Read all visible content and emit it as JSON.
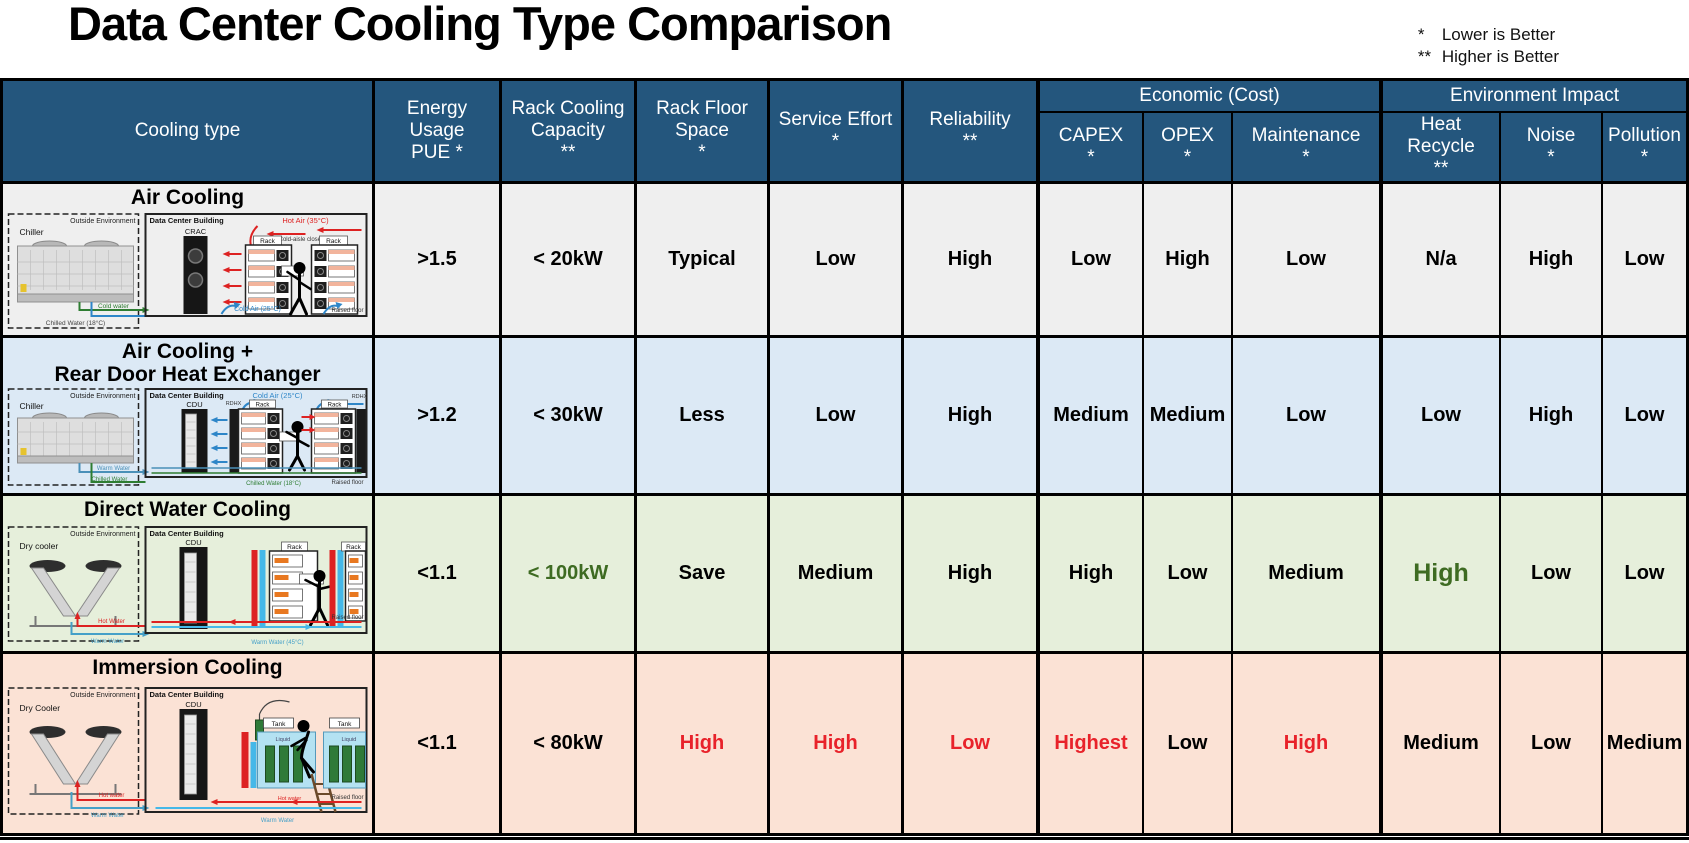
{
  "title": "Data Center Cooling Type Comparison",
  "legend": {
    "items": [
      {
        "marker": "*",
        "text": "Lower is Better"
      },
      {
        "marker": "**",
        "text": "Higher is Better"
      }
    ]
  },
  "colors": {
    "header_bg": "#24567d",
    "header_text": "#ffffff",
    "border": "#000000",
    "row_air_bg": "#efefef",
    "row_rdhx_bg": "#dce9f5",
    "row_dwc_bg": "#e6efdb",
    "row_immersion_bg": "#fbe2d5",
    "good_green": "#3e6b22",
    "bad_red": "#e8222a"
  },
  "table": {
    "groups": [
      {
        "label": "Economic (Cost)"
      },
      {
        "label": "Environment Impact"
      }
    ],
    "columns": [
      {
        "lines": [
          "Cooling type"
        ]
      },
      {
        "lines": [
          "Energy",
          "Usage",
          "PUE *"
        ]
      },
      {
        "lines": [
          "Rack Cooling",
          "Capacity",
          "**"
        ]
      },
      {
        "lines": [
          "Rack Floor",
          "Space",
          "*"
        ]
      },
      {
        "lines": [
          "Service Effort",
          "*"
        ]
      },
      {
        "lines": [
          "Reliability",
          "**"
        ]
      },
      {
        "lines": [
          "CAPEX",
          "*"
        ]
      },
      {
        "lines": [
          "OPEX",
          "*"
        ]
      },
      {
        "lines": [
          "Maintenance",
          "*"
        ]
      },
      {
        "lines": [
          "Heat",
          "Recycle",
          "**"
        ]
      },
      {
        "lines": [
          "Noise",
          "*"
        ]
      },
      {
        "lines": [
          "Pollution",
          "*"
        ]
      }
    ],
    "rows": [
      {
        "name": "Air Cooling",
        "name2": "",
        "bg": "#efefef",
        "values": [
          {
            "t": ">1.5"
          },
          {
            "t": "< 20kW"
          },
          {
            "t": "Typical"
          },
          {
            "t": "Low"
          },
          {
            "t": "High"
          },
          {
            "t": "Low"
          },
          {
            "t": "High"
          },
          {
            "t": "Low"
          },
          {
            "t": "N/a"
          },
          {
            "t": "High"
          },
          {
            "t": "Low"
          }
        ],
        "diagram": {
          "outside": "Outside Environment",
          "building": "Data Center Building",
          "unit": "Chiller",
          "tower": "CRAC",
          "rack1": "Rack",
          "rack2": "Rack",
          "aisle": "Cold-aisle closed",
          "hot_air": "Hot Air (35°C)",
          "cold_air": "Cold Air (25°C)",
          "pipe1": "Cold water",
          "pipe2": "Chilled Water (18°C)",
          "floor": "Raised floor"
        }
      },
      {
        "name": "Air Cooling +",
        "name2": "Rear Door Heat Exchanger",
        "bg": "#dce9f5",
        "values": [
          {
            "t": ">1.2"
          },
          {
            "t": "< 30kW"
          },
          {
            "t": "Less"
          },
          {
            "t": "Low"
          },
          {
            "t": "High"
          },
          {
            "t": "Medium"
          },
          {
            "t": "Medium"
          },
          {
            "t": "Low"
          },
          {
            "t": "Low"
          },
          {
            "t": "High"
          },
          {
            "t": "Low"
          }
        ],
        "diagram": {
          "outside": "Outside Environment",
          "building": "Data Center Building",
          "unit": "Chiller",
          "tower": "CDU",
          "rdhx1": "RDHX",
          "rdhx2": "RDHX",
          "rack1": "Rack",
          "rack2": "Rack",
          "cold_air": "Cold Air (25°C)",
          "pipe1": "Warm Water",
          "pipe2": "Chilled Water",
          "pipe3": "Chilled Water (18°C)",
          "floor": "Raised floor"
        }
      },
      {
        "name": "Direct Water Cooling",
        "name2": "",
        "bg": "#e6efdb",
        "values": [
          {
            "t": "<1.1"
          },
          {
            "t": "< 100kW",
            "c": "green"
          },
          {
            "t": "Save"
          },
          {
            "t": "Medium"
          },
          {
            "t": "High"
          },
          {
            "t": "High"
          },
          {
            "t": "Low"
          },
          {
            "t": "Medium"
          },
          {
            "t": "High",
            "c": "green",
            "big": true
          },
          {
            "t": "Low"
          },
          {
            "t": "Low"
          }
        ],
        "diagram": {
          "outside": "Outside Environment",
          "building": "Data Center Building",
          "unit": "Dry cooler",
          "tower": "CDU",
          "rack1": "Rack",
          "rack2": "Rack",
          "pipe1": "Hot Water",
          "pipe2": "Warm Water",
          "pipe3": "Warm Water (45°C)",
          "floor": "Raised floor"
        }
      },
      {
        "name": "Immersion Cooling",
        "name2": "",
        "bg": "#fbe2d5",
        "values": [
          {
            "t": "<1.1"
          },
          {
            "t": "< 80kW"
          },
          {
            "t": "High",
            "c": "red"
          },
          {
            "t": "High",
            "c": "red"
          },
          {
            "t": "Low",
            "c": "red"
          },
          {
            "t": "Highest",
            "c": "red"
          },
          {
            "t": "Low"
          },
          {
            "t": "High",
            "c": "red"
          },
          {
            "t": "Medium"
          },
          {
            "t": "Low"
          },
          {
            "t": "Medium"
          }
        ],
        "diagram": {
          "outside": "Outside Environment",
          "building": "Data Center Building",
          "unit": "Dry Cooler",
          "tower": "CDU",
          "tank1": "Tank",
          "tank2": "Tank",
          "liquid1": "Liquid",
          "liquid2": "Liquid",
          "pipe1": "Hot water",
          "pipe2": "Warm Water",
          "pipe3": "Hot water",
          "floor": "Raised floor"
        }
      }
    ]
  }
}
